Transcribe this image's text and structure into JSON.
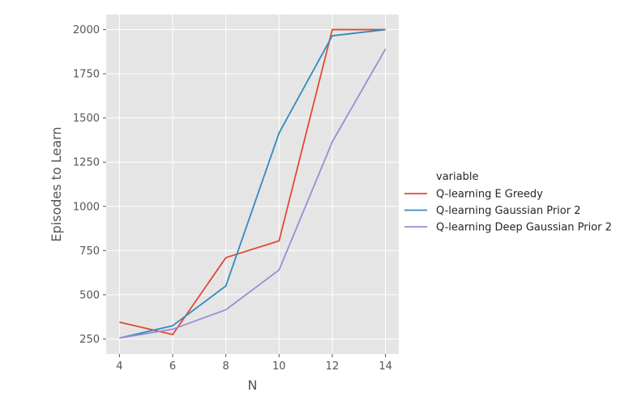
{
  "chart_data": {
    "type": "line",
    "xlabel": "N",
    "ylabel": "Episodes to Learn",
    "x": [
      4,
      6,
      8,
      10,
      12,
      14
    ],
    "xticks": [
      "4",
      "6",
      "8",
      "10",
      "12",
      "14"
    ],
    "yticks": [
      "250",
      "500",
      "750",
      "1000",
      "1250",
      "1500",
      "1750",
      "2000"
    ],
    "xlim": [
      3.5,
      14.5
    ],
    "ylim": [
      165,
      2085
    ],
    "grid": true,
    "background": "#e5e5e5",
    "legend": {
      "title": "variable",
      "placement": "right"
    },
    "series": [
      {
        "name": "Q-learning E Greedy",
        "color": "#e24a33",
        "values": [
          345,
          275,
          710,
          805,
          2000,
          2000
        ]
      },
      {
        "name": "Q-learning Gaussian Prior 2",
        "color": "#348abd",
        "values": [
          255,
          325,
          550,
          1415,
          1965,
          2000
        ]
      },
      {
        "name": "Q-learning Deep Gaussian Prior 2",
        "color": "#988ed5",
        "values": [
          255,
          305,
          415,
          640,
          1365,
          1890
        ]
      }
    ]
  }
}
